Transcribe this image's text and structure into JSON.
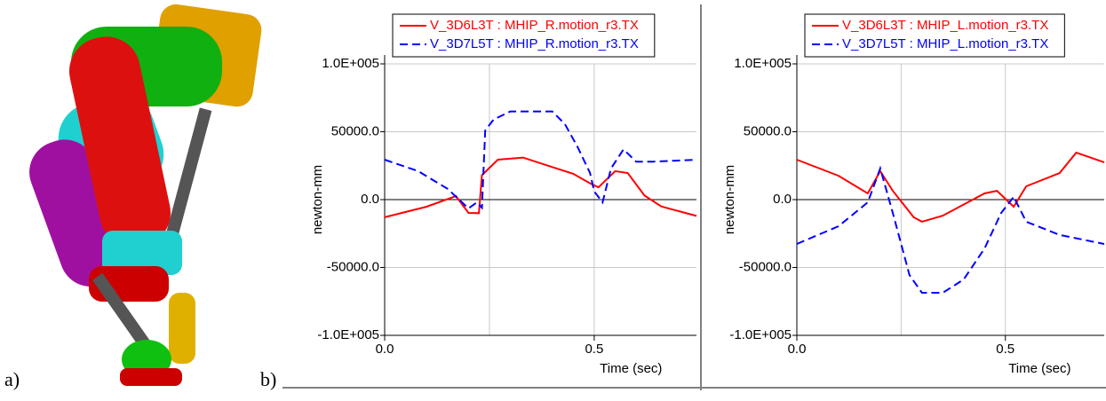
{
  "panel_labels": [
    "a)",
    "b)"
  ],
  "chart_data": [
    {
      "type": "line",
      "ylabel": "newton-mm",
      "xlabel": "Time (sec)",
      "xlim": [
        0,
        0.744
      ],
      "ylim": [
        -100000,
        100000
      ],
      "xticks": [
        {
          "value": 0,
          "label": "0.0"
        },
        {
          "value": 0.5,
          "label": "0.5"
        }
      ],
      "yticks": [
        {
          "value": -100000,
          "label": "-1.0E+005"
        },
        {
          "value": -50000,
          "label": "-50000.0"
        },
        {
          "value": 0,
          "label": "0.0"
        },
        {
          "value": 50000,
          "label": "50000.0"
        },
        {
          "value": 100000,
          "label": "1.0E+005"
        }
      ],
      "xgrid": [
        0.25,
        0.5
      ],
      "grid": true,
      "series": [
        {
          "name": "V_3D6L3T : MHIP_R.motion_r3.TX",
          "color": "#ff0000",
          "style": "solid",
          "x": [
            0,
            0.1,
            0.17,
            0.2,
            0.225,
            0.232,
            0.27,
            0.33,
            0.4,
            0.45,
            0.49,
            0.51,
            0.55,
            0.58,
            0.62,
            0.66,
            0.744
          ],
          "values": [
            -13000,
            -5200,
            2600,
            -9800,
            -10000,
            18000,
            29400,
            31000,
            24000,
            19000,
            12000,
            9000,
            21000,
            19600,
            3000,
            -5000,
            -12000
          ]
        },
        {
          "name": "V_3D7L5T : MHIP_R.motion_r3.TX",
          "color": "#0000ff",
          "style": "dashed",
          "x": [
            0,
            0.08,
            0.15,
            0.2,
            0.22,
            0.232,
            0.24,
            0.26,
            0.3,
            0.4,
            0.43,
            0.46,
            0.49,
            0.5,
            0.52,
            0.54,
            0.57,
            0.6,
            0.64,
            0.744
          ],
          "values": [
            29400,
            21000,
            8000,
            -6500,
            -2000,
            -6000,
            51000,
            59000,
            65000,
            65000,
            55600,
            39000,
            19600,
            6000,
            -2000,
            23000,
            37000,
            28000,
            28000,
            29400
          ]
        }
      ]
    },
    {
      "type": "line",
      "ylabel": "newton-mm",
      "xlabel": "Time (sec)",
      "xlim": [
        0,
        0.737
      ],
      "ylim": [
        -100000,
        100000
      ],
      "xticks": [
        {
          "value": 0,
          "label": "0.0"
        },
        {
          "value": 0.5,
          "label": "0.5"
        }
      ],
      "yticks": [
        {
          "value": -100000,
          "label": "-1.0E+005"
        },
        {
          "value": -50000,
          "label": "-50000.0"
        },
        {
          "value": 0,
          "label": "0.0"
        },
        {
          "value": 50000,
          "label": "50000.0"
        },
        {
          "value": 100000,
          "label": "1.0E+005"
        }
      ],
      "xgrid": [
        0.25,
        0.5
      ],
      "grid": true,
      "series": [
        {
          "name": "V_3D6L3T : MHIP_L.motion_r3.TX",
          "color": "#ff0000",
          "style": "solid",
          "x": [
            0,
            0.1,
            0.17,
            0.2,
            0.23,
            0.28,
            0.3,
            0.35,
            0.45,
            0.48,
            0.52,
            0.55,
            0.63,
            0.67,
            0.737
          ],
          "values": [
            29400,
            17600,
            4600,
            21000,
            6500,
            -13000,
            -16300,
            -11800,
            4600,
            6500,
            -5200,
            9800,
            19600,
            34600,
            27500
          ]
        },
        {
          "name": "V_3D7L5T : MHIP_L.motion_r3.TX",
          "color": "#0000ff",
          "style": "dashed",
          "x": [
            0,
            0.1,
            0.17,
            0.2,
            0.23,
            0.27,
            0.3,
            0.35,
            0.4,
            0.45,
            0.49,
            0.52,
            0.55,
            0.63,
            0.737
          ],
          "values": [
            -32700,
            -19600,
            -2000,
            23000,
            -9800,
            -55600,
            -68600,
            -68600,
            -58800,
            -36000,
            -9800,
            2000,
            -16300,
            -26000,
            -32700
          ]
        }
      ]
    }
  ]
}
